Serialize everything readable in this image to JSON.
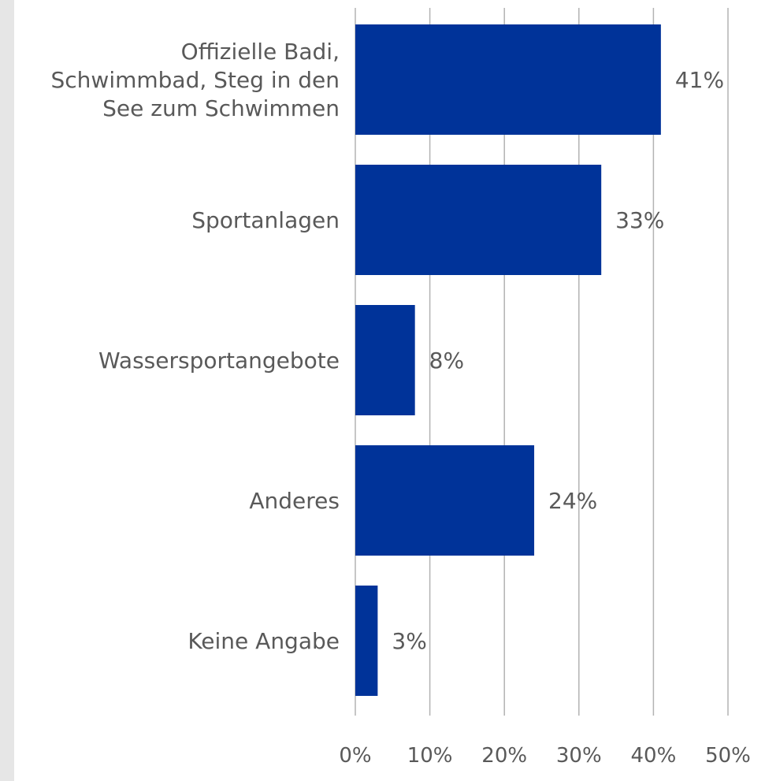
{
  "chart_data": {
    "type": "bar",
    "orientation": "horizontal",
    "categories": [
      [
        "Offizielle Badi,",
        "Schwimmbad, Steg in den",
        "See zum Schwimmen"
      ],
      [
        "Sportanlagen"
      ],
      [
        "Wassersportangebote"
      ],
      [
        "Anderes"
      ],
      [
        "Keine Angabe"
      ]
    ],
    "values": [
      41,
      33,
      8,
      24,
      3
    ],
    "data_labels": [
      "41%",
      "33%",
      "8%",
      "24%",
      "3%"
    ],
    "xlim": [
      0,
      50
    ],
    "x_ticks": [
      0,
      10,
      20,
      30,
      40,
      50
    ],
    "x_tick_labels": [
      "0%",
      "10%",
      "20%",
      "30%",
      "40%",
      "50%"
    ],
    "grid": true,
    "bar_color": "#003399",
    "grid_color": "#b3b3b3",
    "text_color": "#595959",
    "legend": false
  }
}
